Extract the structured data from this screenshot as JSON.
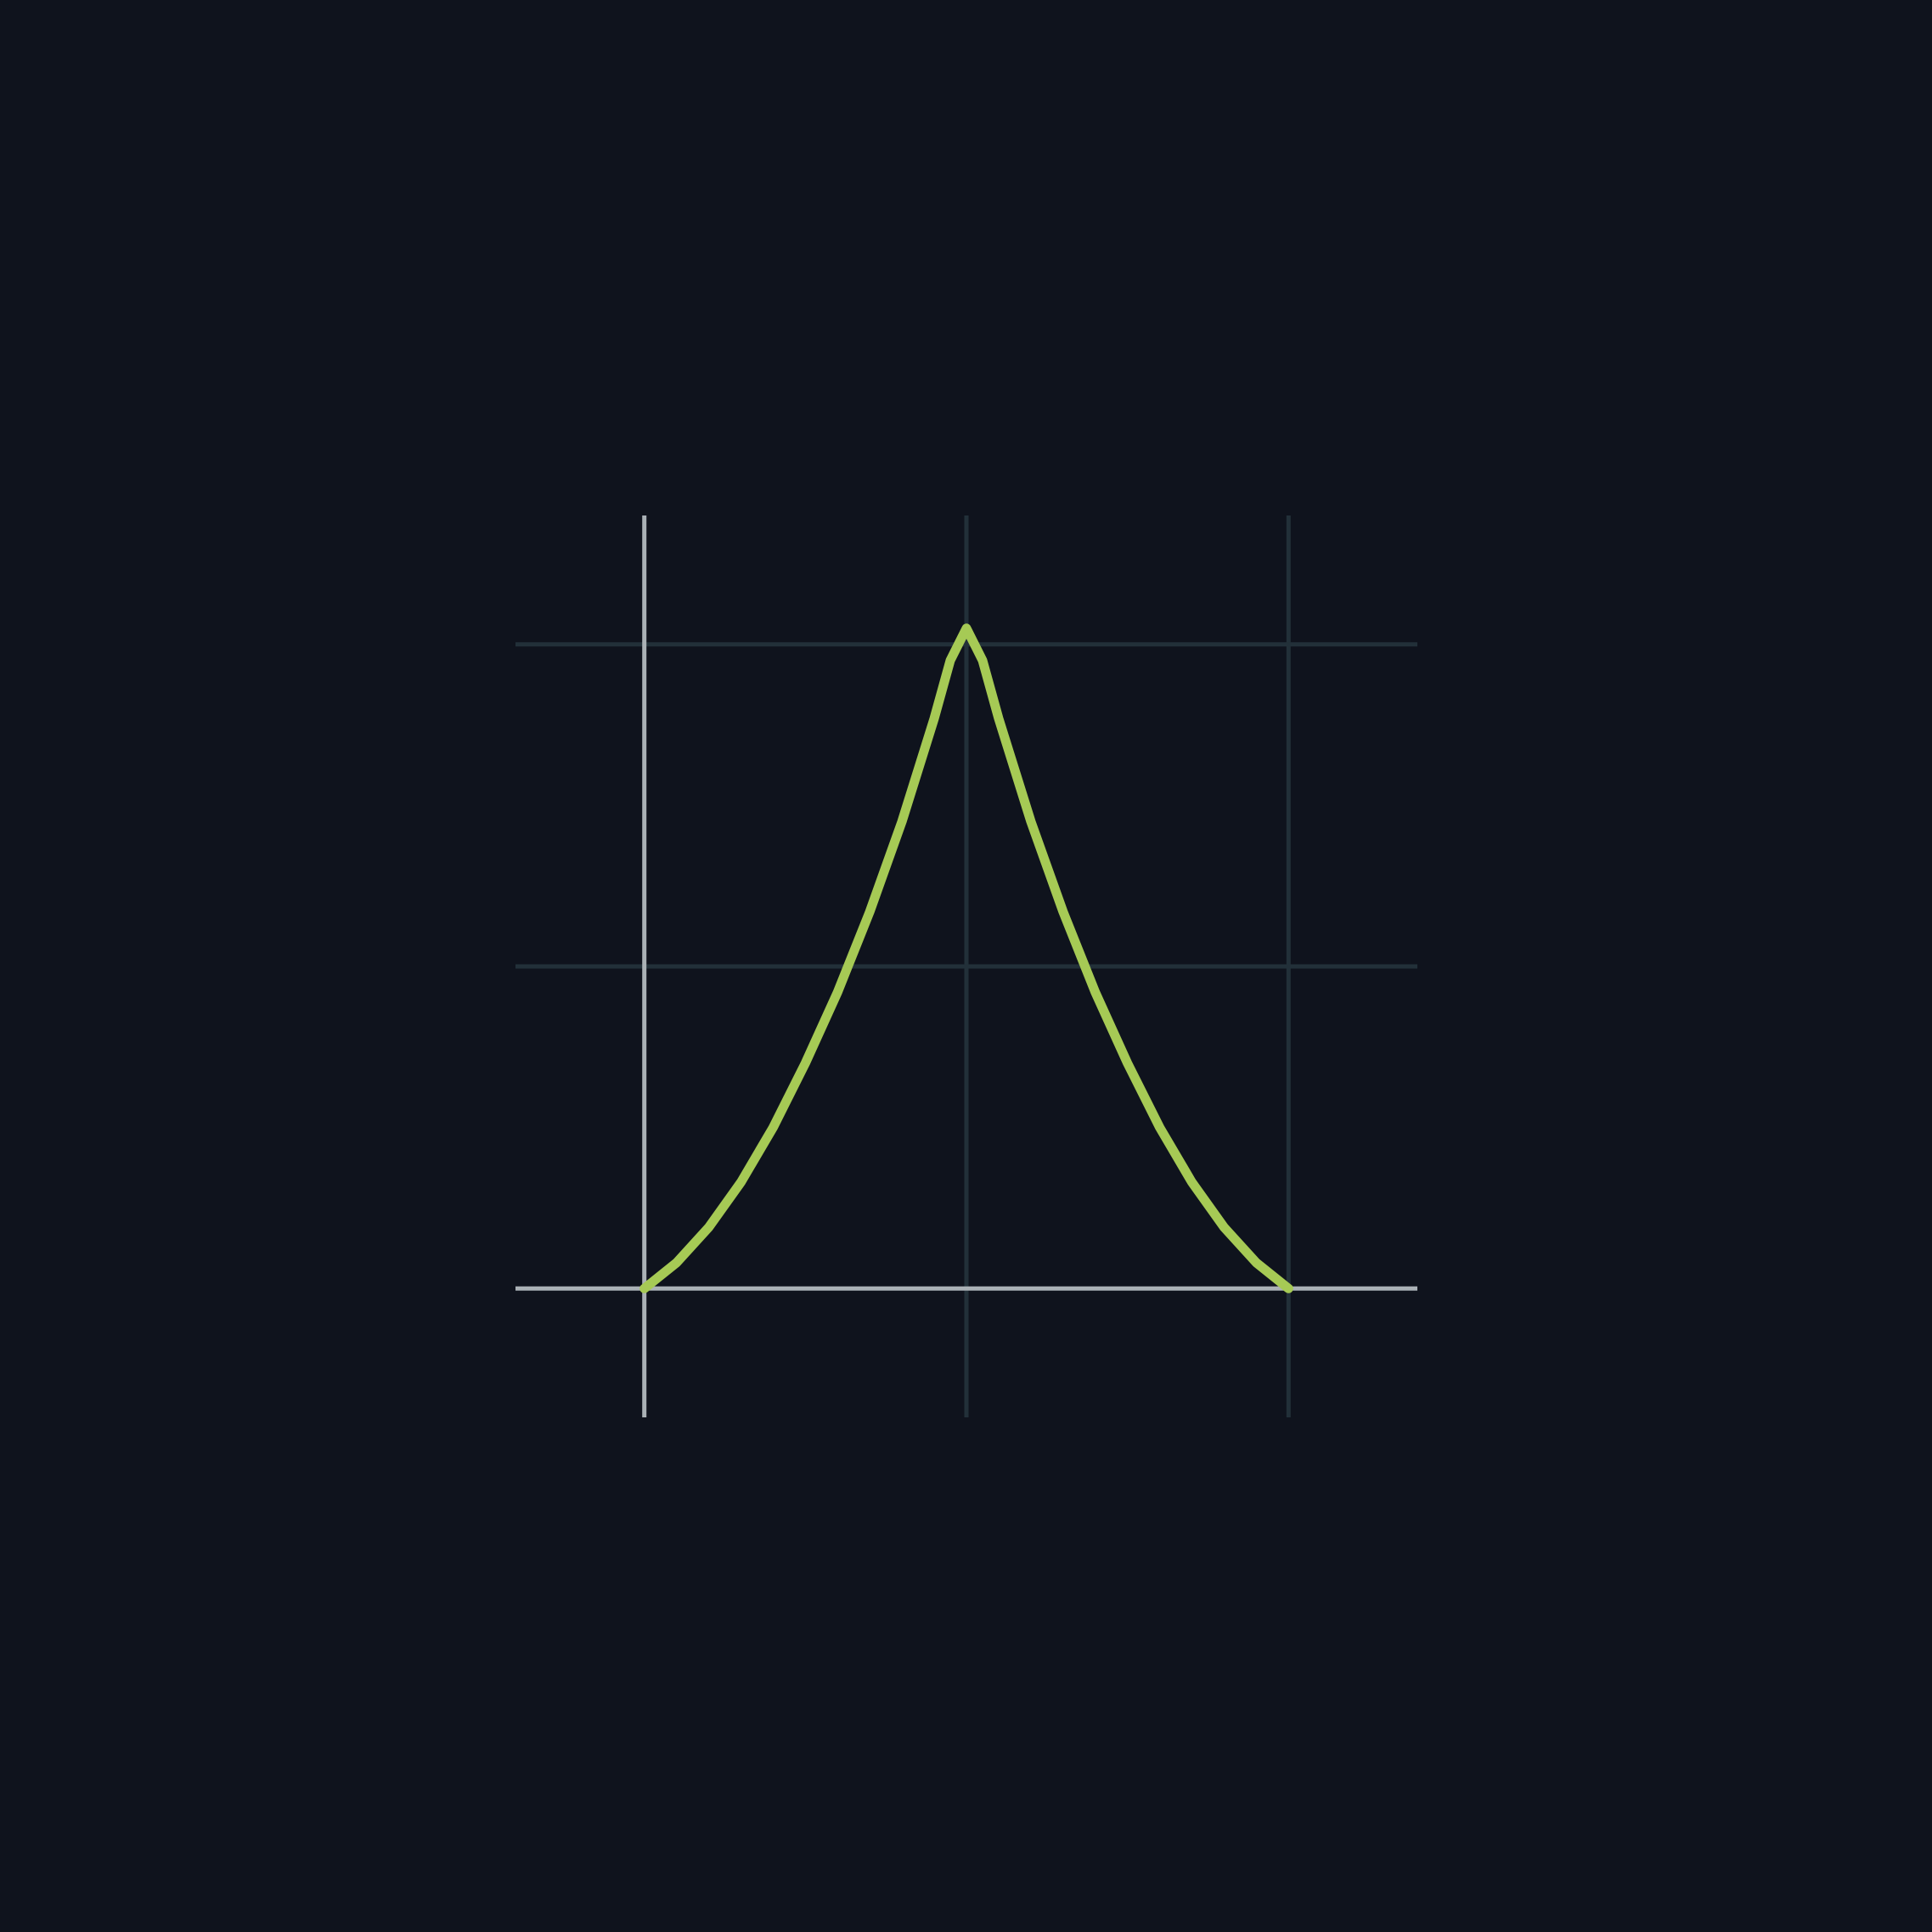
{
  "colors": {
    "background": "#0f131d",
    "grid": "#223039",
    "axis": "#aab1b6",
    "curve": "#a6ca55"
  },
  "chart_data": {
    "type": "line",
    "grid": true,
    "legend": "none",
    "title": "",
    "xlabel": "",
    "ylabel": "",
    "xlim": [
      -0.4,
      2.4
    ],
    "ylim": [
      -0.4,
      2.4
    ],
    "x_gridlines": [
      0,
      1,
      2
    ],
    "y_gridlines": [
      0,
      1,
      2
    ],
    "series": [
      {
        "x": [
          0,
          0.1,
          0.2,
          0.3,
          0.4,
          0.5,
          0.6,
          0.7,
          0.8,
          0.9,
          0.95,
          1.0,
          1.05,
          1.1,
          1.2,
          1.3,
          1.4,
          1.5,
          1.6,
          1.7,
          1.8,
          1.9,
          2.0
        ],
        "y": [
          0.0,
          0.08,
          0.19,
          0.33,
          0.5,
          0.7,
          0.92,
          1.17,
          1.45,
          1.77,
          1.95,
          2.05,
          1.95,
          1.77,
          1.45,
          1.17,
          0.92,
          0.7,
          0.5,
          0.33,
          0.19,
          0.08,
          0.0
        ]
      }
    ]
  }
}
